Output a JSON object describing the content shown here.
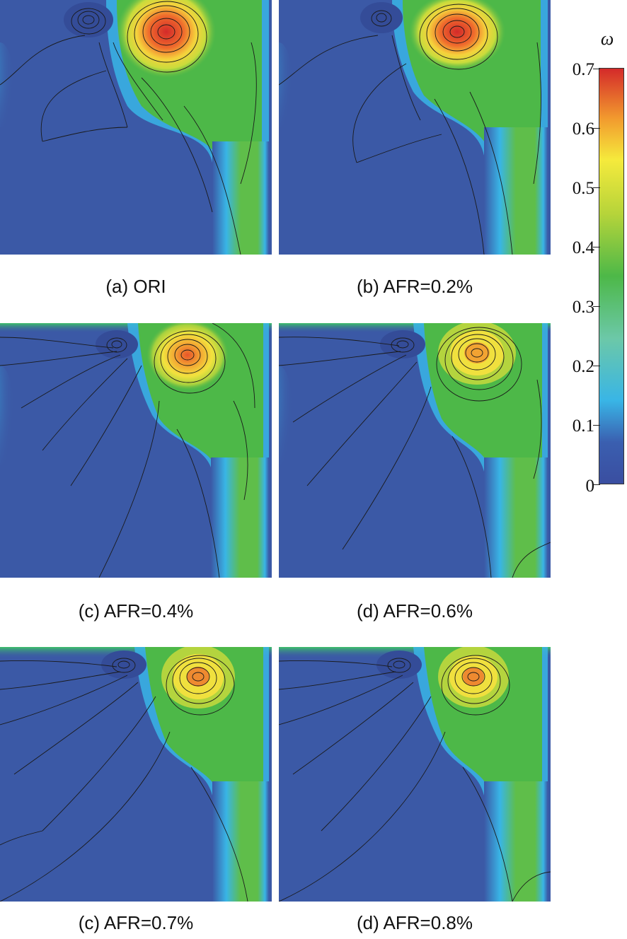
{
  "panels": [
    {
      "id": "a",
      "caption": "(a) ORI"
    },
    {
      "id": "b",
      "caption": "(b) AFR=0.2%"
    },
    {
      "id": "c",
      "caption": "(c) AFR=0.4%"
    },
    {
      "id": "d",
      "caption": "(d) AFR=0.6%"
    },
    {
      "id": "e",
      "caption": "(c) AFR=0.7%"
    },
    {
      "id": "f",
      "caption": "(d) AFR=0.8%"
    }
  ],
  "colorbar": {
    "symbol": "ω",
    "ticks": [
      "0",
      "0.1",
      "0.2",
      "0.3",
      "0.4",
      "0.5",
      "0.6",
      "0.7"
    ],
    "min": 0,
    "max": 0.7,
    "colors": [
      "#3a4ea0",
      "#3a5fb0",
      "#39b5e6",
      "#6cc8a8",
      "#4db848",
      "#b6d43a",
      "#f5ea3c",
      "#f29a2e",
      "#e8402a",
      "#d42a2a"
    ]
  }
}
